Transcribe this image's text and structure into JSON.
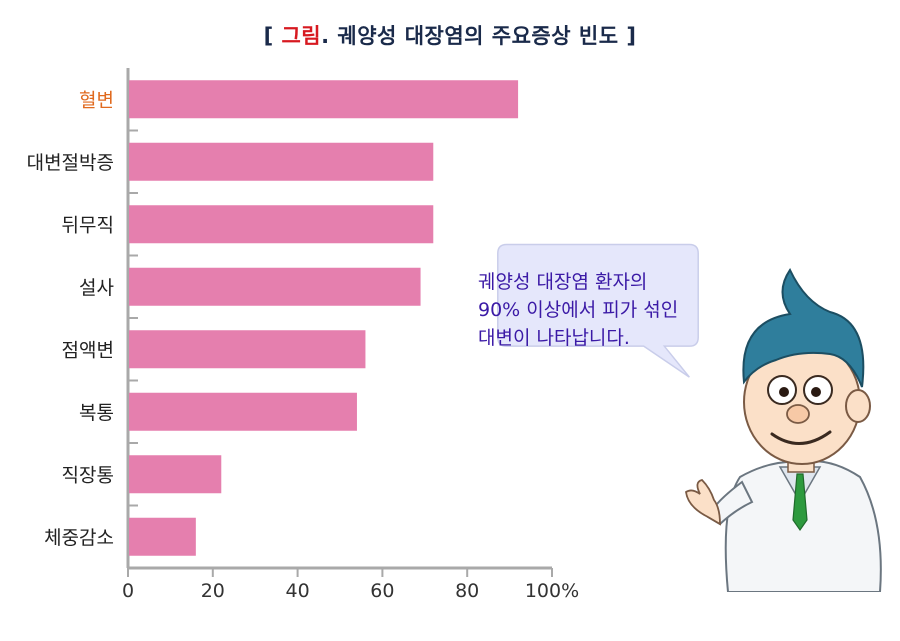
{
  "title": {
    "open": "[",
    "lead": "그림",
    "dot": ".",
    "rest": " 궤양성 대장염의 주요증상 빈도 ",
    "close": "]"
  },
  "colors": {
    "bar": "#e57fae",
    "axis": "#a9a9a9",
    "highlight_label": "#e06a1f",
    "label": "#222222",
    "bubble_fill": "#e5e7fb",
    "bubble_stroke": "#c9cdea",
    "bubble_text": "#3b1aa6"
  },
  "bubble": {
    "line1": "궤양성 대장염 환자의",
    "line2": "90% 이상에서 피가 섞인",
    "line3": "대변이 나타납니다."
  },
  "illustration": {
    "icon": "doctor-character"
  },
  "chart_data": {
    "type": "bar",
    "orientation": "horizontal",
    "title": "[ 그림. 궤양성 대장염의 주요증상 빈도 ]",
    "categories": [
      "혈변",
      "대변절박증",
      "뒤무직",
      "설사",
      "점액변",
      "복통",
      "직장통",
      "체중감소"
    ],
    "values": [
      92,
      72,
      72,
      69,
      56,
      54,
      22,
      16
    ],
    "highlight_category": "혈변",
    "xlim": [
      0,
      100
    ],
    "xticks": [
      "0",
      "20",
      "40",
      "60",
      "80",
      "100%"
    ],
    "xlabel": "",
    "ylabel": "",
    "grid": false,
    "legend": "none"
  }
}
